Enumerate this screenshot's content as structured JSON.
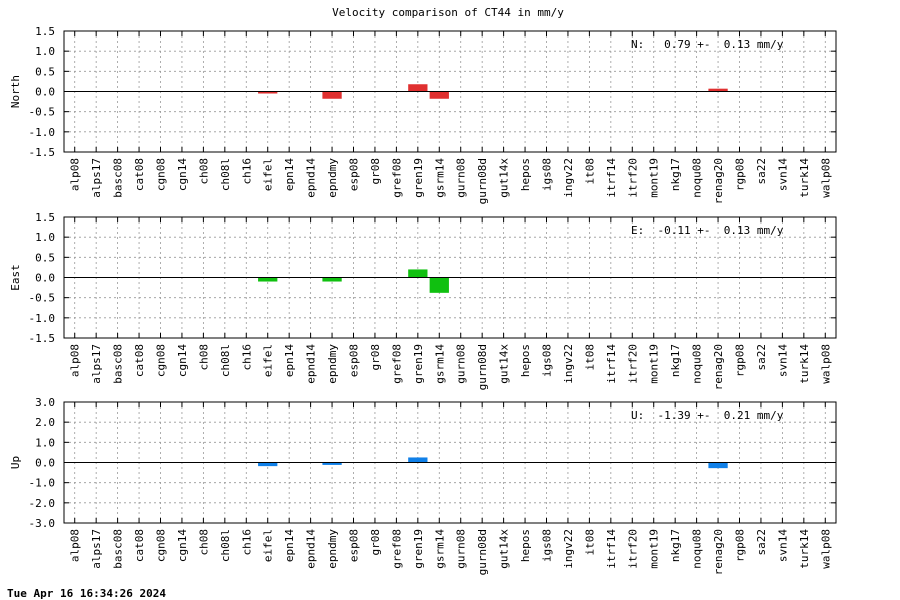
{
  "chart_data": {
    "type": "bar",
    "title": "Velocity comparison of CT44 in mm/y",
    "categories": [
      "alp08",
      "alps17",
      "basc08",
      "cat08",
      "cgn08",
      "cgn14",
      "ch08",
      "ch08l",
      "ch16",
      "eifel",
      "epn14",
      "epnd14",
      "epndmy",
      "esp08",
      "gr08",
      "gref08",
      "gren19",
      "gsrm14",
      "gurn08",
      "gurn08d",
      "gut14x",
      "hepos",
      "igs08",
      "ingv22",
      "it08",
      "itrf14",
      "itrf20",
      "mont19",
      "nkg17",
      "noqu08",
      "renag20",
      "rgp08",
      "sa22",
      "svn14",
      "turk14",
      "walp08"
    ],
    "panels": [
      {
        "ylabel": "North",
        "ylim": [
          -1.5,
          1.5
        ],
        "yticks": [
          1.5,
          1.0,
          0.5,
          0.0,
          -0.5,
          -1.0,
          -1.5
        ],
        "tick_labels": [
          "1.5",
          "1.0",
          "0.5",
          "0.0",
          "-0.5",
          "-1.0",
          "-1.5"
        ],
        "color": "#e03030",
        "stat_text": "N:   0.79 +-  0.13 mm/y",
        "values": [
          null,
          null,
          null,
          null,
          null,
          null,
          null,
          null,
          null,
          -0.05,
          null,
          null,
          -0.18,
          null,
          null,
          null,
          0.18,
          -0.18,
          null,
          null,
          null,
          null,
          null,
          null,
          null,
          null,
          null,
          null,
          null,
          null,
          0.07,
          null,
          null,
          null,
          null,
          null
        ]
      },
      {
        "ylabel": "East",
        "ylim": [
          -1.5,
          1.5
        ],
        "yticks": [
          1.5,
          1.0,
          0.5,
          0.0,
          -0.5,
          -1.0,
          -1.5
        ],
        "tick_labels": [
          "1.5",
          "1.0",
          "0.5",
          "0.0",
          "-0.5",
          "-1.0",
          "-1.5"
        ],
        "color": "#10c010",
        "stat_text": "E:  -0.11 +-  0.13 mm/y",
        "values": [
          null,
          null,
          null,
          null,
          null,
          null,
          null,
          null,
          null,
          -0.1,
          null,
          null,
          -0.1,
          null,
          null,
          null,
          0.2,
          -0.38,
          null,
          null,
          null,
          null,
          null,
          null,
          null,
          null,
          null,
          null,
          null,
          null,
          null,
          null,
          null,
          null,
          null,
          null
        ]
      },
      {
        "ylabel": "Up",
        "ylim": [
          -3.0,
          3.0
        ],
        "yticks": [
          3.0,
          2.0,
          1.0,
          0.0,
          -1.0,
          -2.0,
          -3.0
        ],
        "tick_labels": [
          "3.0",
          "2.0",
          "1.0",
          "0.0",
          "-1.0",
          "-2.0",
          "-3.0"
        ],
        "color": "#1080e8",
        "stat_text": "U:  -1.39 +-  0.21 mm/y",
        "values": [
          null,
          null,
          null,
          null,
          null,
          null,
          null,
          null,
          null,
          -0.18,
          null,
          null,
          -0.12,
          null,
          null,
          null,
          0.25,
          null,
          null,
          null,
          null,
          null,
          null,
          null,
          null,
          null,
          null,
          null,
          null,
          null,
          -0.28,
          null,
          null,
          null,
          null,
          null
        ]
      }
    ],
    "grid": true,
    "timestamp": "Tue Apr 16 16:34:26 2024"
  }
}
